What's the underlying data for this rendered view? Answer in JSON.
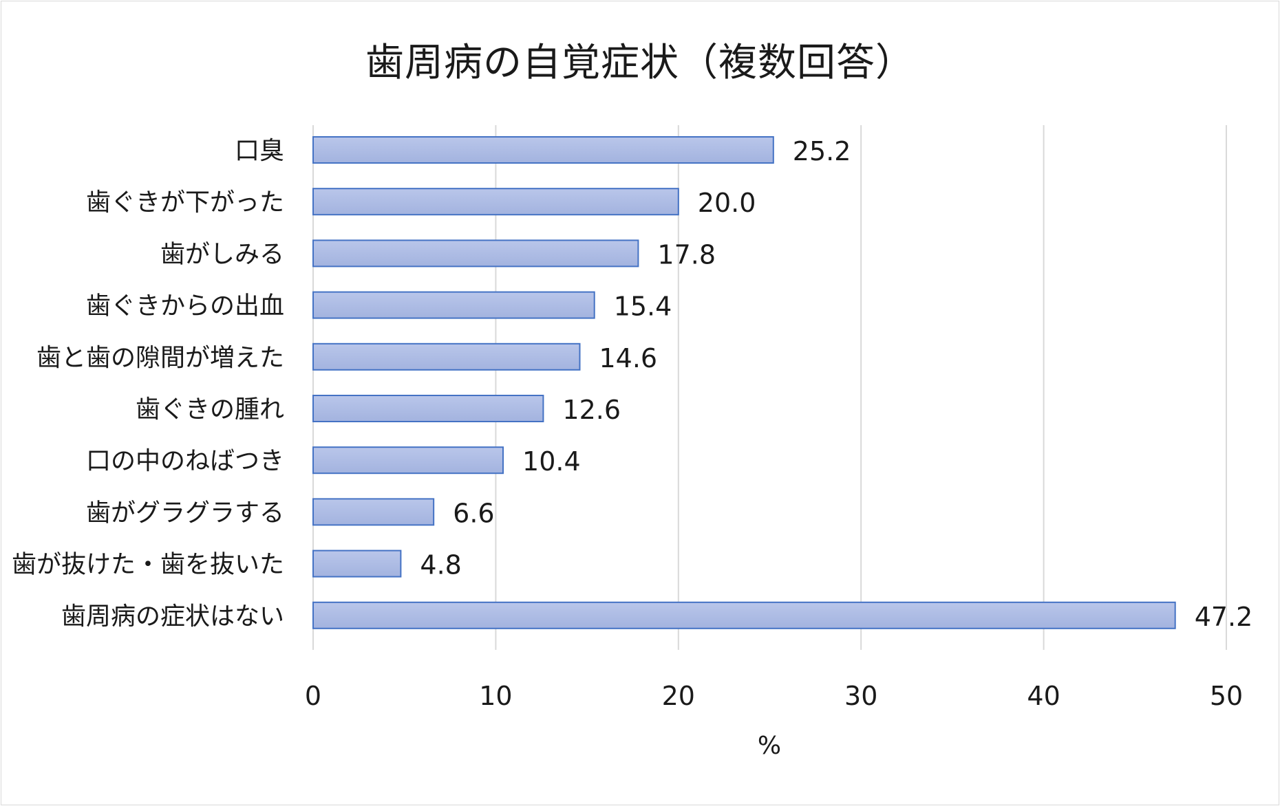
{
  "chart_data": {
    "type": "bar",
    "orientation": "horizontal",
    "title": "歯周病の自覚症状（複数回答）",
    "xlabel": "%",
    "ylabel": "",
    "xlim": [
      0,
      50
    ],
    "ticks": [
      0,
      10,
      20,
      30,
      40,
      50
    ],
    "grid": true,
    "categories": [
      "口臭",
      "歯ぐきが下がった",
      "歯がしみる",
      "歯ぐきからの出血",
      "歯と歯の隙間が増えた",
      "歯ぐきの腫れ",
      "口の中のねばつき",
      "歯がグラグラする",
      "歯が抜けた・歯を抜いた",
      "歯周病の症状はない"
    ],
    "values": [
      25.2,
      20.0,
      17.8,
      15.4,
      14.6,
      12.6,
      10.4,
      6.6,
      4.8,
      47.2
    ],
    "value_labels": [
      "25.2",
      "20.0",
      "17.8",
      "15.4",
      "14.6",
      "12.6",
      "10.4",
      "6.6",
      "4.8",
      "47.2"
    ],
    "bar_color": "#a3b3df",
    "bar_color_light": "#b9c6ea",
    "bar_border": "#4472c4",
    "grid_color": "#d9d9d9"
  }
}
